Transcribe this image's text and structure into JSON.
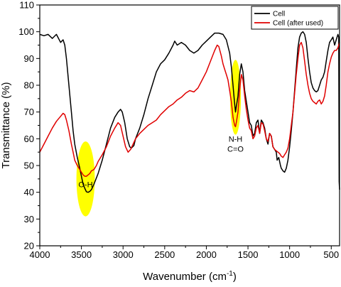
{
  "chart_data": {
    "type": "line",
    "xlabel": "Wavenumber (cm",
    "xlabel_sup": "-1",
    "xlabel_tail": ")",
    "ylabel": "Transmittance (%)",
    "xlim": [
      4000,
      400
    ],
    "ylim": [
      20,
      110
    ],
    "x_reversed": true,
    "grid": false,
    "legend_position": "top-right",
    "xticks": [
      4000,
      3500,
      3000,
      2500,
      2000,
      1500,
      1000,
      500
    ],
    "yticks": [
      20,
      30,
      40,
      50,
      60,
      70,
      80,
      90,
      100,
      110
    ],
    "series": [
      {
        "name": "Cell",
        "color": "#000000",
        "points": [
          [
            4000,
            99
          ],
          [
            3950,
            98.5
          ],
          [
            3900,
            99
          ],
          [
            3850,
            97.5
          ],
          [
            3800,
            99
          ],
          [
            3750,
            96
          ],
          [
            3720,
            97
          ],
          [
            3700,
            95
          ],
          [
            3680,
            90
          ],
          [
            3650,
            80
          ],
          [
            3620,
            70
          ],
          [
            3600,
            63
          ],
          [
            3580,
            58
          ],
          [
            3550,
            53
          ],
          [
            3520,
            49
          ],
          [
            3500,
            46
          ],
          [
            3480,
            43
          ],
          [
            3460,
            41.5
          ],
          [
            3440,
            40.2
          ],
          [
            3420,
            40
          ],
          [
            3400,
            40.3
          ],
          [
            3380,
            41
          ],
          [
            3350,
            43
          ],
          [
            3300,
            47
          ],
          [
            3250,
            52
          ],
          [
            3200,
            58
          ],
          [
            3150,
            64
          ],
          [
            3100,
            68
          ],
          [
            3060,
            70
          ],
          [
            3030,
            71
          ],
          [
            3010,
            70
          ],
          [
            2980,
            66
          ],
          [
            2950,
            60
          ],
          [
            2920,
            57
          ],
          [
            2900,
            56.5
          ],
          [
            2870,
            57.5
          ],
          [
            2850,
            60
          ],
          [
            2800,
            64
          ],
          [
            2750,
            69
          ],
          [
            2700,
            75
          ],
          [
            2650,
            80
          ],
          [
            2600,
            85
          ],
          [
            2550,
            88
          ],
          [
            2500,
            89.5
          ],
          [
            2450,
            92
          ],
          [
            2400,
            95
          ],
          [
            2380,
            96.5
          ],
          [
            2350,
            95
          ],
          [
            2300,
            96
          ],
          [
            2250,
            95
          ],
          [
            2200,
            93
          ],
          [
            2150,
            92
          ],
          [
            2100,
            93
          ],
          [
            2050,
            95
          ],
          [
            2000,
            96.5
          ],
          [
            1950,
            98
          ],
          [
            1900,
            99.5
          ],
          [
            1850,
            99.5
          ],
          [
            1800,
            99
          ],
          [
            1760,
            97
          ],
          [
            1720,
            92
          ],
          [
            1700,
            87
          ],
          [
            1680,
            80
          ],
          [
            1660,
            73
          ],
          [
            1650,
            70
          ],
          [
            1640,
            72
          ],
          [
            1620,
            76
          ],
          [
            1600,
            84
          ],
          [
            1580,
            88
          ],
          [
            1560,
            85
          ],
          [
            1540,
            78
          ],
          [
            1520,
            74
          ],
          [
            1500,
            70
          ],
          [
            1480,
            66
          ],
          [
            1460,
            65
          ],
          [
            1440,
            61
          ],
          [
            1420,
            62
          ],
          [
            1400,
            66
          ],
          [
            1380,
            67
          ],
          [
            1360,
            62
          ],
          [
            1340,
            67
          ],
          [
            1320,
            66
          ],
          [
            1300,
            64
          ],
          [
            1280,
            60
          ],
          [
            1260,
            58
          ],
          [
            1240,
            62
          ],
          [
            1220,
            61
          ],
          [
            1200,
            57
          ],
          [
            1180,
            56
          ],
          [
            1160,
            55
          ],
          [
            1150,
            52
          ],
          [
            1130,
            53
          ],
          [
            1110,
            50
          ],
          [
            1100,
            49
          ],
          [
            1080,
            48
          ],
          [
            1060,
            47.5
          ],
          [
            1040,
            49
          ],
          [
            1020,
            52
          ],
          [
            1000,
            57
          ],
          [
            980,
            63
          ],
          [
            960,
            70
          ],
          [
            940,
            78
          ],
          [
            920,
            86
          ],
          [
            900,
            94
          ],
          [
            880,
            98
          ],
          [
            860,
            99.5
          ],
          [
            840,
            100
          ],
          [
            820,
            99
          ],
          [
            800,
            96
          ],
          [
            780,
            90
          ],
          [
            760,
            85
          ],
          [
            740,
            81
          ],
          [
            720,
            79
          ],
          [
            700,
            78
          ],
          [
            680,
            77.5
          ],
          [
            660,
            78
          ],
          [
            640,
            80
          ],
          [
            620,
            82
          ],
          [
            600,
            83
          ],
          [
            580,
            85
          ],
          [
            560,
            89
          ],
          [
            540,
            93
          ],
          [
            520,
            96
          ],
          [
            500,
            97
          ],
          [
            480,
            98
          ],
          [
            460,
            95
          ],
          [
            440,
            97
          ],
          [
            420,
            99
          ],
          [
            410,
            98
          ],
          [
            405,
            44
          ],
          [
            400,
            41
          ]
        ]
      },
      {
        "name": "Cell (after used)",
        "color": "#e00000",
        "points": [
          [
            4000,
            55
          ],
          [
            3950,
            58
          ],
          [
            3900,
            61
          ],
          [
            3850,
            64
          ],
          [
            3800,
            66.5
          ],
          [
            3760,
            68
          ],
          [
            3720,
            69.5
          ],
          [
            3700,
            69
          ],
          [
            3680,
            67
          ],
          [
            3650,
            63
          ],
          [
            3620,
            58
          ],
          [
            3600,
            55
          ],
          [
            3580,
            52
          ],
          [
            3550,
            50
          ],
          [
            3520,
            48.5
          ],
          [
            3500,
            47.5
          ],
          [
            3480,
            46.5
          ],
          [
            3460,
            46
          ],
          [
            3440,
            46
          ],
          [
            3420,
            46.5
          ],
          [
            3400,
            47
          ],
          [
            3380,
            48
          ],
          [
            3350,
            48.5
          ],
          [
            3320,
            50
          ],
          [
            3300,
            51.5
          ],
          [
            3250,
            54
          ],
          [
            3200,
            57
          ],
          [
            3150,
            61
          ],
          [
            3100,
            64
          ],
          [
            3060,
            66
          ],
          [
            3030,
            65
          ],
          [
            3000,
            61
          ],
          [
            2970,
            57
          ],
          [
            2940,
            55
          ],
          [
            2910,
            56
          ],
          [
            2880,
            58
          ],
          [
            2850,
            60
          ],
          [
            2800,
            62
          ],
          [
            2750,
            63.5
          ],
          [
            2700,
            65
          ],
          [
            2650,
            66
          ],
          [
            2600,
            67
          ],
          [
            2550,
            69
          ],
          [
            2500,
            70.5
          ],
          [
            2450,
            72
          ],
          [
            2400,
            73
          ],
          [
            2350,
            74.5
          ],
          [
            2300,
            75.5
          ],
          [
            2250,
            77
          ],
          [
            2200,
            78
          ],
          [
            2150,
            77.5
          ],
          [
            2100,
            79
          ],
          [
            2050,
            82
          ],
          [
            2000,
            85
          ],
          [
            1950,
            89
          ],
          [
            1900,
            93
          ],
          [
            1870,
            95
          ],
          [
            1850,
            94.5
          ],
          [
            1820,
            91
          ],
          [
            1800,
            88
          ],
          [
            1780,
            86
          ],
          [
            1760,
            84
          ],
          [
            1740,
            82
          ],
          [
            1720,
            78
          ],
          [
            1700,
            74
          ],
          [
            1680,
            68
          ],
          [
            1660,
            65
          ],
          [
            1650,
            64.5
          ],
          [
            1640,
            66
          ],
          [
            1620,
            70
          ],
          [
            1600,
            78
          ],
          [
            1580,
            84
          ],
          [
            1560,
            82
          ],
          [
            1540,
            76
          ],
          [
            1520,
            71
          ],
          [
            1500,
            67
          ],
          [
            1480,
            64
          ],
          [
            1460,
            63
          ],
          [
            1440,
            60
          ],
          [
            1420,
            61
          ],
          [
            1400,
            64
          ],
          [
            1380,
            65
          ],
          [
            1360,
            62
          ],
          [
            1340,
            66
          ],
          [
            1320,
            65.5
          ],
          [
            1300,
            63
          ],
          [
            1280,
            60
          ],
          [
            1260,
            59
          ],
          [
            1240,
            62
          ],
          [
            1220,
            61
          ],
          [
            1200,
            57
          ],
          [
            1180,
            56
          ],
          [
            1160,
            55.5
          ],
          [
            1140,
            55
          ],
          [
            1120,
            54.5
          ],
          [
            1100,
            53.5
          ],
          [
            1080,
            53
          ],
          [
            1060,
            54
          ],
          [
            1040,
            55
          ],
          [
            1020,
            56.5
          ],
          [
            1000,
            60
          ],
          [
            980,
            65
          ],
          [
            960,
            70
          ],
          [
            940,
            77
          ],
          [
            920,
            84
          ],
          [
            900,
            90
          ],
          [
            880,
            95
          ],
          [
            860,
            96
          ],
          [
            840,
            94
          ],
          [
            820,
            89
          ],
          [
            800,
            84
          ],
          [
            780,
            80
          ],
          [
            760,
            77
          ],
          [
            740,
            75
          ],
          [
            720,
            74
          ],
          [
            700,
            73.5
          ],
          [
            680,
            73
          ],
          [
            660,
            74
          ],
          [
            640,
            74.5
          ],
          [
            620,
            73
          ],
          [
            600,
            74
          ],
          [
            580,
            76
          ],
          [
            560,
            80
          ],
          [
            540,
            85
          ],
          [
            520,
            88
          ],
          [
            500,
            90.5
          ],
          [
            480,
            92
          ],
          [
            460,
            93
          ],
          [
            440,
            93
          ],
          [
            420,
            94
          ],
          [
            400,
            96
          ]
        ]
      }
    ],
    "annotations": [
      {
        "text": "O-H",
        "x": 3450,
        "y": 43,
        "ellipse_cx": 3450,
        "ellipse_cy": 45,
        "ellipse_rx": 110,
        "ellipse_ry": 14
      },
      {
        "text": "N-H",
        "text2": "C=O",
        "x": 1650,
        "y": 60,
        "ellipse_cx": 1650,
        "ellipse_cy": 75.5,
        "ellipse_rx": 65,
        "ellipse_ry": 14
      }
    ],
    "highlight_color": "#ffff00"
  }
}
